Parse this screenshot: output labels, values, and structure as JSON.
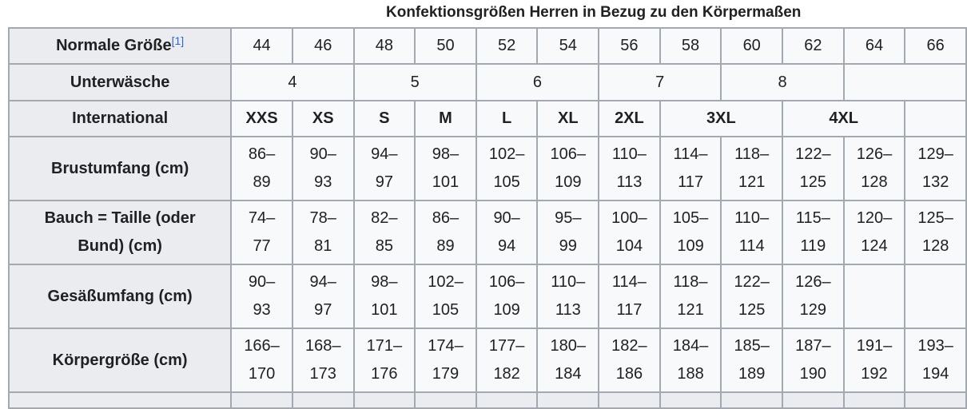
{
  "title": "Konfektionsgrößen Herren in Bezug zu den Körpermaßen",
  "rows": [
    {
      "label": "Normale Größe",
      "ref": "[1]",
      "bold": false,
      "cells": [
        {
          "v": "44"
        },
        {
          "v": "46"
        },
        {
          "v": "48"
        },
        {
          "v": "50"
        },
        {
          "v": "52"
        },
        {
          "v": "54"
        },
        {
          "v": "56"
        },
        {
          "v": "58"
        },
        {
          "v": "60"
        },
        {
          "v": "62"
        },
        {
          "v": "64"
        },
        {
          "v": "66"
        }
      ]
    },
    {
      "label": "Unterwäsche",
      "bold": false,
      "cells": [
        {
          "v": "4",
          "span": 2
        },
        {
          "v": "5",
          "span": 2
        },
        {
          "v": "6",
          "span": 2
        },
        {
          "v": "7",
          "span": 2
        },
        {
          "v": "8",
          "span": 2
        },
        {
          "v": "",
          "span": 2
        }
      ]
    },
    {
      "label": "International",
      "bold": true,
      "cells": [
        {
          "v": "XXS"
        },
        {
          "v": "XS"
        },
        {
          "v": "S"
        },
        {
          "v": "M"
        },
        {
          "v": "L"
        },
        {
          "v": "XL"
        },
        {
          "v": "2XL"
        },
        {
          "v": "3XL",
          "span": 2
        },
        {
          "v": "4XL",
          "span": 2
        },
        {
          "v": ""
        }
      ]
    },
    {
      "label": "Brustumfang (cm)",
      "bold": false,
      "cells": [
        {
          "v": "86–89"
        },
        {
          "v": "90–93"
        },
        {
          "v": "94–97"
        },
        {
          "v": "98–101"
        },
        {
          "v": "102–105"
        },
        {
          "v": "106–109"
        },
        {
          "v": "110–113"
        },
        {
          "v": "114–117"
        },
        {
          "v": "118–121"
        },
        {
          "v": "122–125"
        },
        {
          "v": "126–128"
        },
        {
          "v": "129–132"
        }
      ]
    },
    {
      "label": "Bauch = Taille (oder Bund) (cm)",
      "bold": false,
      "cells": [
        {
          "v": "74–77"
        },
        {
          "v": "78–81"
        },
        {
          "v": "82–85"
        },
        {
          "v": "86–89"
        },
        {
          "v": "90–94"
        },
        {
          "v": "95–99"
        },
        {
          "v": "100–104"
        },
        {
          "v": "105–109"
        },
        {
          "v": "110–114"
        },
        {
          "v": "115–119"
        },
        {
          "v": "120–124"
        },
        {
          "v": "125–128"
        }
      ]
    },
    {
      "label": "Gesäßumfang (cm)",
      "bold": false,
      "cells": [
        {
          "v": "90–93"
        },
        {
          "v": "94–97"
        },
        {
          "v": "98–101"
        },
        {
          "v": "102–105"
        },
        {
          "v": "106–109"
        },
        {
          "v": "110–113"
        },
        {
          "v": "114–117"
        },
        {
          "v": "118–121"
        },
        {
          "v": "122–125"
        },
        {
          "v": "126–129"
        },
        {
          "v": ""
        },
        {
          "v": ""
        }
      ]
    },
    {
      "label": "Körpergröße (cm)",
      "bold": false,
      "cells": [
        {
          "v": "166–170"
        },
        {
          "v": "168–173"
        },
        {
          "v": "171–176"
        },
        {
          "v": "174–179"
        },
        {
          "v": "177–182"
        },
        {
          "v": "180–184"
        },
        {
          "v": "182–186"
        },
        {
          "v": "184–188"
        },
        {
          "v": "185–189"
        },
        {
          "v": "187–190"
        },
        {
          "v": "191–192"
        },
        {
          "v": "193–194"
        }
      ]
    }
  ]
}
